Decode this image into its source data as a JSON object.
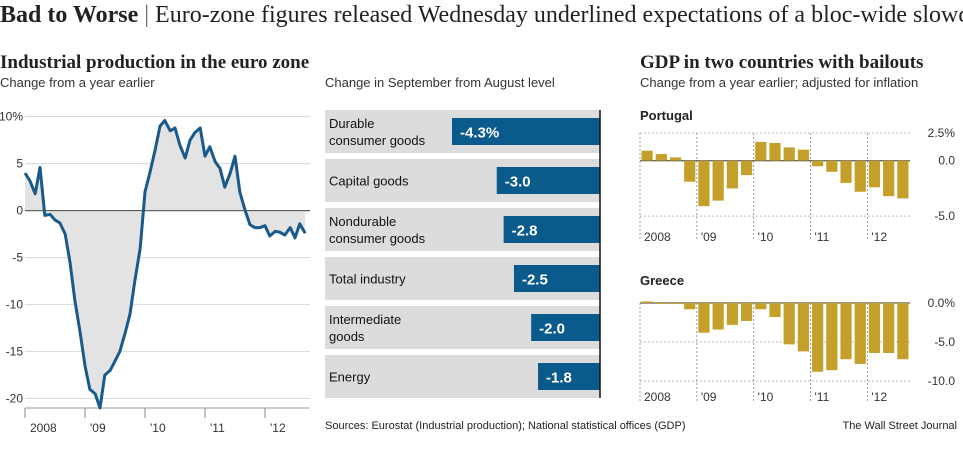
{
  "headline": {
    "bold": "Bad to Worse",
    "separator": "|",
    "text": "Euro-zone figures released Wednesday underlined expectations of a bloc-wide slowdown"
  },
  "colors": {
    "line": "#1a5a8a",
    "bar_blue": "#0a5a8c",
    "bar_gold": "#c4a02a",
    "fill_gray": "#e3e3e3",
    "row_gray": "#dcdcdc"
  },
  "footer": {
    "sources": "Sources: Eurostat (Industrial production); National statistical offices (GDP)",
    "publisher": "The Wall Street Journal"
  },
  "chart_data": [
    {
      "type": "line",
      "title": "Industrial production in the euro zone",
      "subtitle": "Change from a year earlier",
      "ylim": [
        -21,
        10.5
      ],
      "y_ticks": [
        10,
        5,
        0,
        -5,
        -10,
        -15,
        -20
      ],
      "y_tick_labels": [
        "10%",
        "5",
        "0",
        "-5",
        "-10",
        "-15",
        "-20"
      ],
      "x_ticks": [
        "2008",
        "'09",
        "'10",
        "'11",
        "'12"
      ],
      "x_range": [
        2008.0,
        2012.75
      ],
      "fill_to_zero": true,
      "points": [
        [
          2008.0,
          4.0
        ],
        [
          2008.08,
          3.2
        ],
        [
          2008.17,
          1.8
        ],
        [
          2008.25,
          4.6
        ],
        [
          2008.33,
          -0.5
        ],
        [
          2008.42,
          -0.4
        ],
        [
          2008.5,
          -1.0
        ],
        [
          2008.58,
          -1.3
        ],
        [
          2008.67,
          -2.5
        ],
        [
          2008.75,
          -5.5
        ],
        [
          2008.83,
          -9.5
        ],
        [
          2008.92,
          -13.0
        ],
        [
          2009.0,
          -16.5
        ],
        [
          2009.08,
          -19.0
        ],
        [
          2009.17,
          -19.5
        ],
        [
          2009.25,
          -21.0
        ],
        [
          2009.33,
          -17.5
        ],
        [
          2009.42,
          -17.0
        ],
        [
          2009.5,
          -16.0
        ],
        [
          2009.58,
          -15.0
        ],
        [
          2009.67,
          -13.0
        ],
        [
          2009.75,
          -11.0
        ],
        [
          2009.83,
          -7.5
        ],
        [
          2009.92,
          -4.0
        ],
        [
          2010.0,
          2.0
        ],
        [
          2010.08,
          4.0
        ],
        [
          2010.17,
          6.5
        ],
        [
          2010.25,
          9.0
        ],
        [
          2010.33,
          9.6
        ],
        [
          2010.42,
          8.5
        ],
        [
          2010.5,
          8.8
        ],
        [
          2010.58,
          7.0
        ],
        [
          2010.67,
          5.6
        ],
        [
          2010.75,
          7.5
        ],
        [
          2010.83,
          8.3
        ],
        [
          2010.92,
          8.8
        ],
        [
          2011.0,
          5.8
        ],
        [
          2011.08,
          6.8
        ],
        [
          2011.17,
          5.2
        ],
        [
          2011.25,
          4.5
        ],
        [
          2011.33,
          2.5
        ],
        [
          2011.42,
          4.0
        ],
        [
          2011.5,
          5.8
        ],
        [
          2011.58,
          2.0
        ],
        [
          2011.67,
          0.0
        ],
        [
          2011.75,
          -1.5
        ],
        [
          2011.83,
          -1.8
        ],
        [
          2011.92,
          -1.8
        ],
        [
          2012.0,
          -1.6
        ],
        [
          2012.08,
          -2.7
        ],
        [
          2012.17,
          -2.2
        ],
        [
          2012.25,
          -2.3
        ],
        [
          2012.33,
          -2.6
        ],
        [
          2012.42,
          -1.8
        ],
        [
          2012.5,
          -2.9
        ],
        [
          2012.58,
          -1.4
        ],
        [
          2012.67,
          -2.4
        ]
      ]
    },
    {
      "type": "bar",
      "orientation": "horizontal",
      "title": "Change in September from August level",
      "categories": [
        "Durable\nconsumer goods",
        "Capital goods",
        "Nondurable\nconsumer goods",
        "Total industry",
        "Intermediate\ngoods",
        "Energy"
      ],
      "values": [
        -4.3,
        -3.0,
        -2.8,
        -2.5,
        -2.0,
        -1.8
      ],
      "value_labels": [
        "-4.3%",
        "-3.0",
        "-2.8",
        "-2.5",
        "-2.0",
        "-1.8"
      ]
    },
    {
      "type": "bar",
      "title": "GDP in two countries with bailouts",
      "subtitle": "Change from a year earlier; adjusted for inflation",
      "series": [
        {
          "name": "Portugal",
          "ylim": [
            -5.8,
            2.5
          ],
          "y_ticks": [
            2.5,
            0,
            -5
          ],
          "y_tick_labels": [
            "2.5%",
            "0.0",
            "-5.0"
          ],
          "x_ticks": [
            "2008",
            "'09",
            "'10",
            "'11",
            "'12"
          ],
          "values": [
            0.9,
            0.6,
            0.3,
            -1.9,
            -4.1,
            -3.6,
            -2.5,
            -1.3,
            1.7,
            1.6,
            1.2,
            1.0,
            -0.5,
            -1.0,
            -2.0,
            -2.8,
            -2.4,
            -3.2,
            -3.4
          ]
        },
        {
          "name": "Greece",
          "ylim": [
            -10.5,
            0
          ],
          "y_ticks": [
            0,
            -5,
            -10
          ],
          "y_tick_labels": [
            "0.0%",
            "-5.0",
            "-10.0"
          ],
          "x_ticks": [
            "2008",
            "'09",
            "'10",
            "'11",
            "'12"
          ],
          "values": [
            0.2,
            0.0,
            0.0,
            -0.8,
            -3.8,
            -3.4,
            -2.8,
            -2.3,
            -0.8,
            -1.8,
            -5.3,
            -6.2,
            -8.8,
            -8.6,
            -7.2,
            -7.8,
            -6.4,
            -6.4,
            -7.2
          ]
        }
      ]
    }
  ]
}
